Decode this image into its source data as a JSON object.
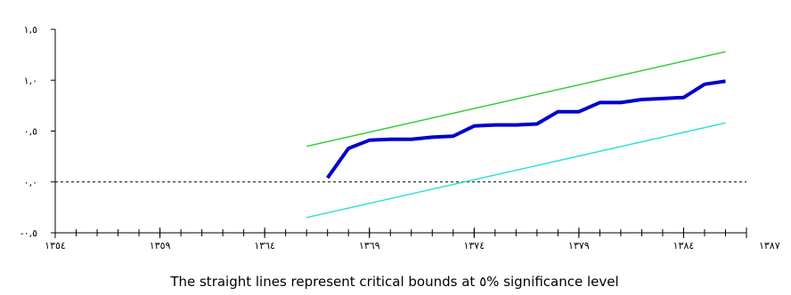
{
  "chart_data": {
    "type": "line",
    "title": "",
    "xlabel": "",
    "ylabel": "",
    "caption": "The straight lines represent critical bounds at ٥% significance level",
    "xlim": [
      1354,
      1387
    ],
    "ylim": [
      -0.5,
      1.5
    ],
    "x_ticks": [
      1354,
      1359,
      1364,
      1369,
      1374,
      1379,
      1384,
      1387
    ],
    "x_tick_labels": [
      "۱۳٥٤",
      "۱۳٥۹",
      "۱۳٦٤",
      "۱۳٦۹",
      "۱۳۷٤",
      "۱۳۷۹",
      "۱۳۸٤",
      "۱۳۸۷"
    ],
    "y_ticks": [
      -0.5,
      0,
      0.5,
      1.0,
      1.5
    ],
    "y_tick_labels": [
      "-۰,٥",
      "۰,۰",
      "۰,٥",
      "۱,۰",
      "۱,٥"
    ],
    "reference_line": {
      "y": 0,
      "style": "dashed",
      "color": "#000000"
    },
    "series": [
      {
        "role": "statistic",
        "color": "#0000cc",
        "x": [
          1367,
          1368,
          1369,
          1370,
          1371,
          1372,
          1373,
          1374,
          1375,
          1376,
          1377,
          1378,
          1379,
          1380,
          1381,
          1382,
          1383,
          1384,
          1385,
          1386
        ],
        "y": [
          0.04,
          0.33,
          0.41,
          0.42,
          0.42,
          0.44,
          0.45,
          0.55,
          0.56,
          0.56,
          0.57,
          0.69,
          0.69,
          0.78,
          0.78,
          0.81,
          0.82,
          0.83,
          0.96,
          0.99
        ]
      },
      {
        "role": "upper_bound",
        "color": "#33cc33",
        "x": [
          1366,
          1386
        ],
        "y": [
          0.35,
          1.28
        ]
      },
      {
        "role": "lower_bound",
        "color": "#33dddd",
        "x": [
          1366,
          1386
        ],
        "y": [
          -0.35,
          0.58
        ]
      }
    ]
  }
}
